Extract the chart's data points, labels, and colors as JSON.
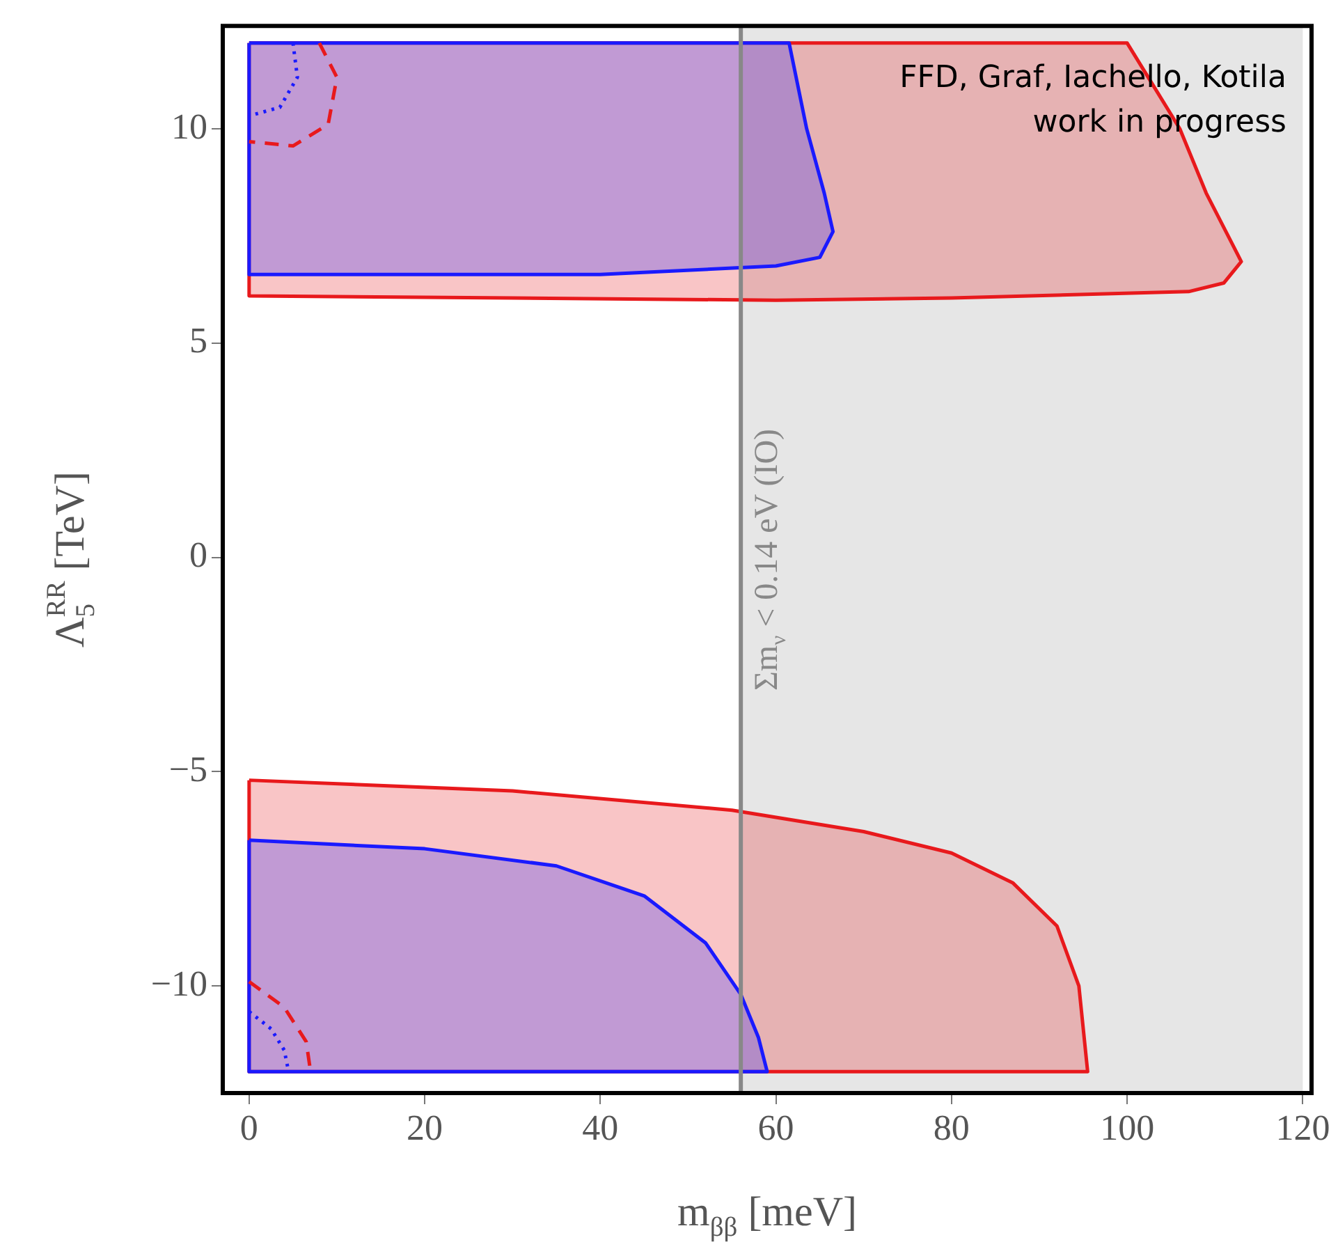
{
  "chart_data": {
    "type": "area",
    "xlabel": "m$_{ββ}$ [meV]",
    "ylabel": "Λ$_{5}$$^{RR}$ [TeV]",
    "xlim": [
      -3,
      121
    ],
    "ylim": [
      -12.5,
      12.4
    ],
    "xticks": [
      0,
      20,
      40,
      60,
      80,
      100,
      120
    ],
    "yticks": [
      {
        "value": -10,
        "label": "−10"
      },
      {
        "value": -5,
        "label": "−5"
      },
      0,
      5,
      10
    ],
    "grid": false,
    "legend": false,
    "series": [
      {
        "color": "#e8191c",
        "x": [
          0,
          100,
          103,
          106,
          109,
          112,
          113,
          111,
          107,
          80,
          60,
          30,
          0,
          0
        ],
        "values": [
          12,
          12,
          11,
          10,
          8.5,
          7.3,
          6.9,
          6.4,
          6.2,
          6.05,
          6.0,
          6.05,
          6.1,
          12
        ]
      },
      {
        "color": "#e8191c",
        "x": [
          0,
          30,
          55,
          70,
          80,
          87,
          92,
          94.5,
          95.5,
          0,
          0
        ],
        "values": [
          -5.2,
          -5.45,
          -5.9,
          -6.4,
          -6.9,
          -7.6,
          -8.6,
          -10,
          -12,
          -12,
          -5.2
        ]
      },
      {
        "color": "#1a1aff",
        "x": [
          0,
          61.5,
          63.5,
          65.5,
          66.5,
          65,
          60,
          40,
          0,
          0
        ],
        "values": [
          12,
          12,
          10,
          8.5,
          7.6,
          7.0,
          6.8,
          6.6,
          6.6,
          12
        ]
      },
      {
        "color": "#1a1aff",
        "x": [
          0,
          20,
          35,
          45,
          52,
          56,
          58,
          59,
          0,
          0
        ],
        "values": [
          -6.6,
          -6.8,
          -7.2,
          -7.9,
          -9,
          -10.2,
          -11.2,
          -12,
          -12,
          -6.6
        ]
      },
      {
        "type": "line",
        "line_style": "dashed",
        "color": "#e8191c",
        "x": [
          8,
          10,
          9,
          5,
          0
        ],
        "values": [
          12,
          11.2,
          10.1,
          9.6,
          9.7
        ]
      },
      {
        "type": "line",
        "line_style": "dotted",
        "color": "#1a1aff",
        "x": [
          5,
          5.5,
          3.5,
          0
        ],
        "values": [
          12,
          11.2,
          10.5,
          10.3
        ]
      },
      {
        "type": "line",
        "line_style": "dashed",
        "color": "#e8191c",
        "x": [
          0,
          4,
          6.5,
          7
        ],
        "values": [
          -9.9,
          -10.5,
          -11.3,
          -12
        ]
      },
      {
        "type": "line",
        "line_style": "dotted",
        "color": "#1a1aff",
        "x": [
          0,
          2.5,
          4,
          4.5
        ],
        "values": [
          -10.6,
          -11,
          -11.5,
          -12
        ]
      }
    ],
    "bands": [
      {
        "axis": "x",
        "from": 56,
        "to": 120,
        "color": "#e6e6e6"
      }
    ],
    "ref_lines": [
      {
        "axis": "x",
        "value": 56,
        "label": "Σm$_{ν}$ < 0.14 eV (IO)",
        "color": "#888888"
      }
    ],
    "annotations": [
      "FFD, Graf, Iachello, Kotila",
      "work in progress"
    ]
  }
}
